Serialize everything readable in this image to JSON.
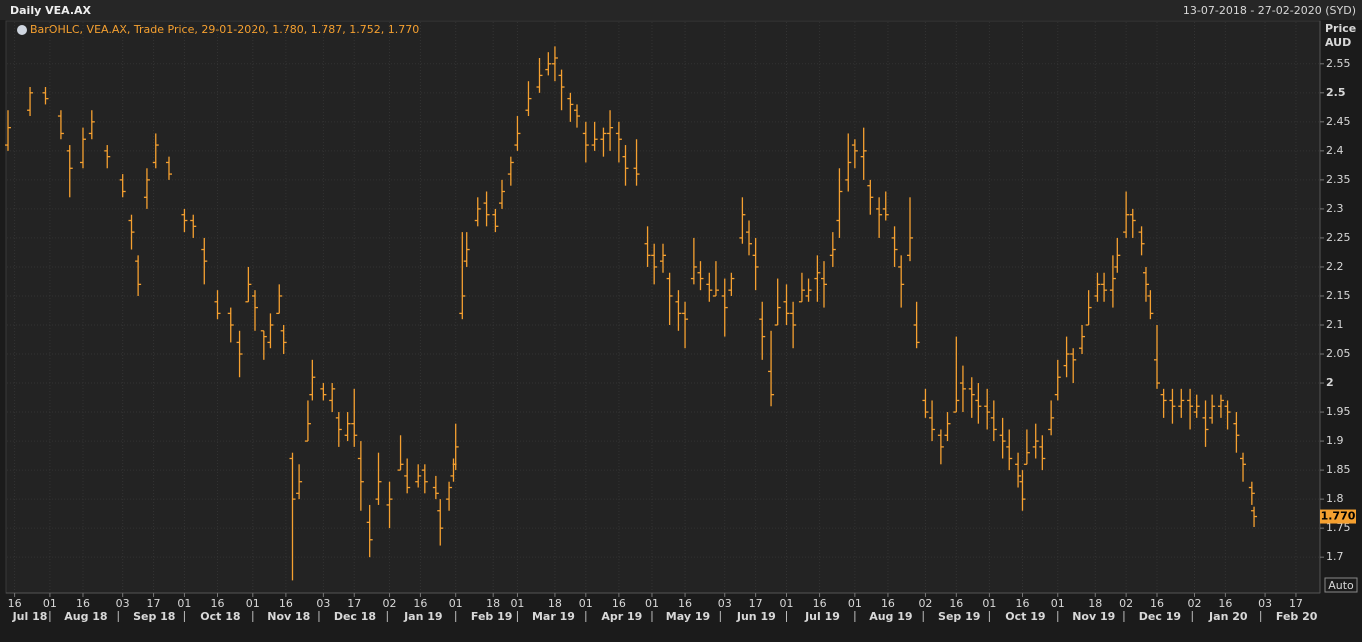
{
  "chart_data": {
    "type": "ohlc",
    "title": "Daily VEA.AX",
    "date_range": "13-07-2018 - 27-02-2020 (SYD)",
    "legend": "BarOHLC, VEA.AX, Trade Price, 29-01-2020, 1.780, 1.787, 1.752, 1.770",
    "y_title": "Price",
    "y_unit": "AUD",
    "scale_button": "Auto",
    "color": "#f5a030",
    "grid": true,
    "last_price": {
      "value": 1.77,
      "label": "1.770"
    },
    "xlim": [
      "2018-07-13",
      "2020-02-27"
    ],
    "ylim": [
      1.64,
      2.622
    ],
    "yticks": [
      1.7,
      1.75,
      1.8,
      1.85,
      1.9,
      1.95,
      2,
      2.05,
      2.1,
      2.15,
      2.2,
      2.25,
      2.3,
      2.35,
      2.4,
      2.45,
      2.5,
      2.55
    ],
    "xticks": [
      {
        "value": "2018-07-16",
        "label": "16"
      },
      {
        "value": "2018-08-01",
        "label": "01"
      },
      {
        "value": "2018-08-16",
        "label": "16"
      },
      {
        "value": "2018-09-03",
        "label": "03"
      },
      {
        "value": "2018-09-17",
        "label": "17"
      },
      {
        "value": "2018-10-01",
        "label": "01"
      },
      {
        "value": "2018-10-16",
        "label": "16"
      },
      {
        "value": "2018-11-01",
        "label": "01"
      },
      {
        "value": "2018-11-16",
        "label": "16"
      },
      {
        "value": "2018-12-03",
        "label": "03"
      },
      {
        "value": "2018-12-17",
        "label": "17"
      },
      {
        "value": "2019-01-02",
        "label": "02"
      },
      {
        "value": "2019-01-16",
        "label": "16"
      },
      {
        "value": "2019-02-01",
        "label": "01"
      },
      {
        "value": "2019-02-18",
        "label": "18"
      },
      {
        "value": "2019-03-01",
        "label": "01"
      },
      {
        "value": "2019-03-18",
        "label": "18"
      },
      {
        "value": "2019-04-01",
        "label": "01"
      },
      {
        "value": "2019-04-16",
        "label": "16"
      },
      {
        "value": "2019-05-01",
        "label": "01"
      },
      {
        "value": "2019-05-16",
        "label": "16"
      },
      {
        "value": "2019-06-03",
        "label": "03"
      },
      {
        "value": "2019-06-17",
        "label": "17"
      },
      {
        "value": "2019-07-01",
        "label": "01"
      },
      {
        "value": "2019-07-16",
        "label": "16"
      },
      {
        "value": "2019-08-01",
        "label": "01"
      },
      {
        "value": "2019-08-16",
        "label": "16"
      },
      {
        "value": "2019-09-02",
        "label": "02"
      },
      {
        "value": "2019-09-16",
        "label": "16"
      },
      {
        "value": "2019-10-01",
        "label": "01"
      },
      {
        "value": "2019-10-16",
        "label": "16"
      },
      {
        "value": "2019-11-01",
        "label": "01"
      },
      {
        "value": "2019-11-18",
        "label": "18"
      },
      {
        "value": "2019-12-02",
        "label": "02"
      },
      {
        "value": "2019-12-16",
        "label": "16"
      },
      {
        "value": "2020-01-02",
        "label": "02"
      },
      {
        "value": "2020-01-16",
        "label": "16"
      },
      {
        "value": "2020-02-03",
        "label": "03"
      },
      {
        "value": "2020-02-17",
        "label": "17"
      }
    ],
    "month_labels": [
      {
        "value": "2018-07-01",
        "label": "Jul 18"
      },
      {
        "value": "2018-08-01",
        "label": "Aug 18"
      },
      {
        "value": "2018-09-01",
        "label": "Sep 18"
      },
      {
        "value": "2018-10-01",
        "label": "Oct 18"
      },
      {
        "value": "2018-11-01",
        "label": "Nov 18"
      },
      {
        "value": "2018-12-01",
        "label": "Dec 18"
      },
      {
        "value": "2019-01-01",
        "label": "Jan 19"
      },
      {
        "value": "2019-02-01",
        "label": "Feb 19"
      },
      {
        "value": "2019-03-01",
        "label": "Mar 19"
      },
      {
        "value": "2019-04-01",
        "label": "Apr 19"
      },
      {
        "value": "2019-05-01",
        "label": "May 19"
      },
      {
        "value": "2019-06-01",
        "label": "Jun 19"
      },
      {
        "value": "2019-07-01",
        "label": "Jul 19"
      },
      {
        "value": "2019-08-01",
        "label": "Aug 19"
      },
      {
        "value": "2019-09-01",
        "label": "Sep 19"
      },
      {
        "value": "2019-10-01",
        "label": "Oct 19"
      },
      {
        "value": "2019-11-01",
        "label": "Nov 19"
      },
      {
        "value": "2019-12-01",
        "label": "Dec 19"
      },
      {
        "value": "2020-01-01",
        "label": "Jan 20"
      },
      {
        "value": "2020-02-01",
        "label": "Feb 20"
      }
    ],
    "x": [
      "2018-07-13",
      "2018-07-23",
      "2018-07-30",
      "2018-08-06",
      "2018-08-10",
      "2018-08-16",
      "2018-08-20",
      "2018-08-27",
      "2018-09-03",
      "2018-09-07",
      "2018-09-10",
      "2018-09-14",
      "2018-09-18",
      "2018-09-24",
      "2018-10-01",
      "2018-10-05",
      "2018-10-10",
      "2018-10-16",
      "2018-10-22",
      "2018-10-26",
      "2018-10-30",
      "2018-11-02",
      "2018-11-06",
      "2018-11-09",
      "2018-11-13",
      "2018-11-15",
      "2018-11-19",
      "2018-11-22",
      "2018-11-26",
      "2018-11-28",
      "2018-12-03",
      "2018-12-07",
      "2018-12-10",
      "2018-12-14",
      "2018-12-17",
      "2018-12-20",
      "2018-12-24",
      "2018-12-28",
      "2019-01-02",
      "2019-01-07",
      "2019-01-10",
      "2019-01-15",
      "2019-01-18",
      "2019-01-23",
      "2019-01-25",
      "2019-01-29",
      "2019-01-31",
      "2019-02-01",
      "2019-02-04",
      "2019-02-06",
      "2019-02-11",
      "2019-02-15",
      "2019-02-19",
      "2019-02-22",
      "2019-02-26",
      "2019-03-01",
      "2019-03-06",
      "2019-03-11",
      "2019-03-15",
      "2019-03-18",
      "2019-03-21",
      "2019-03-25",
      "2019-03-28",
      "2019-04-01",
      "2019-04-05",
      "2019-04-09",
      "2019-04-12",
      "2019-04-16",
      "2019-04-19",
      "2019-04-24",
      "2019-04-29",
      "2019-05-02",
      "2019-05-06",
      "2019-05-09",
      "2019-05-13",
      "2019-05-16",
      "2019-05-20",
      "2019-05-23",
      "2019-05-27",
      "2019-05-30",
      "2019-06-03",
      "2019-06-06",
      "2019-06-11",
      "2019-06-14",
      "2019-06-17",
      "2019-06-20",
      "2019-06-24",
      "2019-06-27",
      "2019-07-01",
      "2019-07-04",
      "2019-07-08",
      "2019-07-11",
      "2019-07-15",
      "2019-07-18",
      "2019-07-22",
      "2019-07-25",
      "2019-07-29",
      "2019-08-01",
      "2019-08-05",
      "2019-08-08",
      "2019-08-12",
      "2019-08-15",
      "2019-08-19",
      "2019-08-22",
      "2019-08-26",
      "2019-08-29",
      "2019-09-02",
      "2019-09-05",
      "2019-09-09",
      "2019-09-12",
      "2019-09-16",
      "2019-09-19",
      "2019-09-23",
      "2019-09-26",
      "2019-09-30",
      "2019-10-03",
      "2019-10-07",
      "2019-10-10",
      "2019-10-14",
      "2019-10-16",
      "2019-10-18",
      "2019-10-22",
      "2019-10-25",
      "2019-10-29",
      "2019-11-01",
      "2019-11-05",
      "2019-11-08",
      "2019-11-12",
      "2019-11-15",
      "2019-11-19",
      "2019-11-22",
      "2019-11-26",
      "2019-11-28",
      "2019-12-02",
      "2019-12-05",
      "2019-12-09",
      "2019-12-11",
      "2019-12-13",
      "2019-12-16",
      "2019-12-19",
      "2019-12-23",
      "2019-12-27",
      "2019-12-31",
      "2020-01-03",
      "2020-01-07",
      "2020-01-10",
      "2020-01-14",
      "2020-01-17",
      "2020-01-21",
      "2020-01-24",
      "2020-01-28",
      "2020-01-29"
    ],
    "open": [
      2.41,
      2.47,
      2.5,
      2.46,
      2.4,
      2.38,
      2.43,
      2.4,
      2.35,
      2.28,
      2.21,
      2.32,
      2.38,
      2.38,
      2.29,
      2.28,
      2.23,
      2.14,
      2.12,
      2.07,
      2.14,
      2.15,
      2.09,
      2.07,
      2.12,
      2.09,
      1.87,
      1.81,
      1.9,
      1.98,
      1.99,
      1.97,
      1.94,
      1.91,
      1.93,
      1.87,
      1.76,
      1.8,
      1.79,
      1.85,
      1.84,
      1.83,
      1.85,
      1.82,
      1.78,
      1.8,
      1.84,
      1.86,
      2.12,
      2.21,
      2.28,
      2.31,
      2.29,
      2.31,
      2.36,
      2.41,
      2.47,
      2.51,
      2.54,
      2.55,
      2.53,
      2.49,
      2.47,
      2.43,
      2.41,
      2.42,
      2.43,
      2.43,
      2.39,
      2.37,
      2.24,
      2.22,
      2.21,
      2.18,
      2.14,
      2.12,
      2.18,
      2.19,
      2.17,
      2.15,
      2.15,
      2.16,
      2.25,
      2.26,
      2.22,
      2.11,
      2.02,
      2.1,
      2.14,
      2.12,
      2.14,
      2.15,
      2.18,
      2.18,
      2.22,
      2.28,
      2.35,
      2.41,
      2.39,
      2.34,
      2.3,
      2.3,
      2.25,
      2.2,
      2.22,
      2.1,
      1.97,
      1.94,
      1.91,
      1.91,
      1.95,
      2,
      1.99,
      1.97,
      1.96,
      1.94,
      1.91,
      1.89,
      1.86,
      1.83,
      1.86,
      1.89,
      1.89,
      1.92,
      1.98,
      2.03,
      2.05,
      2.06,
      2.1,
      2.15,
      2.17,
      2.16,
      2.2,
      2.26,
      2.29,
      2.26,
      2.19,
      2.15,
      2.04,
      1.98,
      1.97,
      1.96,
      1.97,
      1.95,
      1.94,
      1.94,
      1.96,
      1.96,
      1.93,
      1.87,
      1.82,
      1.78
    ],
    "high": [
      2.47,
      2.51,
      2.51,
      2.47,
      2.41,
      2.44,
      2.47,
      2.41,
      2.36,
      2.29,
      2.22,
      2.37,
      2.43,
      2.39,
      2.3,
      2.29,
      2.25,
      2.16,
      2.13,
      2.09,
      2.2,
      2.16,
      2.09,
      2.12,
      2.17,
      2.1,
      1.88,
      1.86,
      1.97,
      2.04,
      2,
      2,
      1.95,
      1.95,
      1.99,
      1.9,
      1.79,
      1.88,
      1.83,
      1.91,
      1.87,
      1.86,
      1.86,
      1.84,
      1.8,
      1.83,
      1.87,
      1.93,
      2.26,
      2.26,
      2.32,
      2.33,
      2.3,
      2.35,
      2.39,
      2.46,
      2.52,
      2.56,
      2.57,
      2.58,
      2.54,
      2.5,
      2.48,
      2.45,
      2.45,
      2.44,
      2.47,
      2.45,
      2.41,
      2.42,
      2.27,
      2.24,
      2.24,
      2.19,
      2.16,
      2.14,
      2.25,
      2.21,
      2.19,
      2.21,
      2.18,
      2.19,
      2.32,
      2.28,
      2.25,
      2.14,
      2.09,
      2.18,
      2.17,
      2.14,
      2.19,
      2.18,
      2.22,
      2.21,
      2.26,
      2.37,
      2.43,
      2.42,
      2.44,
      2.35,
      2.32,
      2.33,
      2.27,
      2.22,
      2.32,
      2.14,
      1.99,
      1.97,
      1.92,
      1.95,
      2.08,
      2.03,
      2.01,
      2,
      1.99,
      1.97,
      1.94,
      1.92,
      1.88,
      1.85,
      1.92,
      1.93,
      1.91,
      1.97,
      2.04,
      2.08,
      2.06,
      2.1,
      2.16,
      2.19,
      2.19,
      2.22,
      2.25,
      2.33,
      2.3,
      2.27,
      2.2,
      2.16,
      2.1,
      1.99,
      1.99,
      1.99,
      1.99,
      1.98,
      1.97,
      1.98,
      1.98,
      1.97,
      1.95,
      1.88,
      1.83,
      1.787
    ],
    "low": [
      2.4,
      2.46,
      2.48,
      2.42,
      2.32,
      2.37,
      2.42,
      2.37,
      2.32,
      2.23,
      2.15,
      2.3,
      2.37,
      2.35,
      2.26,
      2.25,
      2.17,
      2.11,
      2.07,
      2.01,
      2.14,
      2.09,
      2.04,
      2.06,
      2.12,
      2.05,
      1.66,
      1.8,
      1.9,
      1.97,
      1.97,
      1.95,
      1.89,
      1.9,
      1.89,
      1.78,
      1.7,
      1.79,
      1.75,
      1.85,
      1.81,
      1.82,
      1.81,
      1.8,
      1.72,
      1.78,
      1.83,
      1.85,
      2.11,
      2.2,
      2.27,
      2.27,
      2.26,
      2.3,
      2.34,
      2.4,
      2.46,
      2.5,
      2.53,
      2.52,
      2.47,
      2.45,
      2.44,
      2.38,
      2.4,
      2.39,
      2.4,
      2.38,
      2.34,
      2.34,
      2.2,
      2.17,
      2.19,
      2.1,
      2.09,
      2.06,
      2.17,
      2.16,
      2.14,
      2.15,
      2.08,
      2.15,
      2.24,
      2.22,
      2.16,
      2.04,
      1.96,
      2.1,
      2.1,
      2.06,
      2.14,
      2.14,
      2.14,
      2.13,
      2.2,
      2.25,
      2.33,
      2.37,
      2.35,
      2.29,
      2.25,
      2.28,
      2.2,
      2.13,
      2.21,
      2.06,
      1.94,
      1.9,
      1.86,
      1.9,
      1.95,
      1.95,
      1.94,
      1.93,
      1.92,
      1.9,
      1.87,
      1.85,
      1.82,
      1.78,
      1.86,
      1.87,
      1.85,
      1.91,
      1.97,
      2.01,
      2,
      2.05,
      2.1,
      2.14,
      2.14,
      2.13,
      2.19,
      2.25,
      2.25,
      2.22,
      2.14,
      2.11,
      1.99,
      1.94,
      1.93,
      1.94,
      1.92,
      1.94,
      1.89,
      1.93,
      1.94,
      1.92,
      1.88,
      1.83,
      1.79,
      1.752
    ],
    "close": [
      2.44,
      2.5,
      2.49,
      2.43,
      2.37,
      2.42,
      2.45,
      2.39,
      2.33,
      2.26,
      2.17,
      2.35,
      2.41,
      2.36,
      2.28,
      2.27,
      2.21,
      2.12,
      2.1,
      2.05,
      2.17,
      2.13,
      2.08,
      2.1,
      2.15,
      2.07,
      1.8,
      1.83,
      1.93,
      2.01,
      1.98,
      1.99,
      1.92,
      1.93,
      1.91,
      1.83,
      1.73,
      1.83,
      1.8,
      1.86,
      1.82,
      1.84,
      1.83,
      1.81,
      1.75,
      1.82,
      1.86,
      1.89,
      2.15,
      2.23,
      2.3,
      2.29,
      2.27,
      2.33,
      2.38,
      2.43,
      2.49,
      2.53,
      2.55,
      2.56,
      2.51,
      2.48,
      2.46,
      2.41,
      2.42,
      2.43,
      2.44,
      2.42,
      2.37,
      2.36,
      2.22,
      2.2,
      2.22,
      2.15,
      2.12,
      2.11,
      2.2,
      2.18,
      2.16,
      2.16,
      2.13,
      2.18,
      2.29,
      2.24,
      2.2,
      2.08,
      1.98,
      2.13,
      2.12,
      2.1,
      2.16,
      2.16,
      2.19,
      2.17,
      2.23,
      2.33,
      2.38,
      2.4,
      2.4,
      2.32,
      2.29,
      2.29,
      2.23,
      2.17,
      2.25,
      2.07,
      1.95,
      1.92,
      1.89,
      1.93,
      1.97,
      1.99,
      1.98,
      1.96,
      1.95,
      1.92,
      1.9,
      1.87,
      1.84,
      1.8,
      1.88,
      1.9,
      1.87,
      1.94,
      2.01,
      2.05,
      2.04,
      2.08,
      2.13,
      2.17,
      2.16,
      2.18,
      2.22,
      2.29,
      2.28,
      2.24,
      2.17,
      2.12,
      2,
      1.97,
      1.96,
      1.97,
      1.96,
      1.96,
      1.92,
      1.96,
      1.97,
      1.95,
      1.91,
      1.86,
      1.81,
      1.77
    ]
  }
}
